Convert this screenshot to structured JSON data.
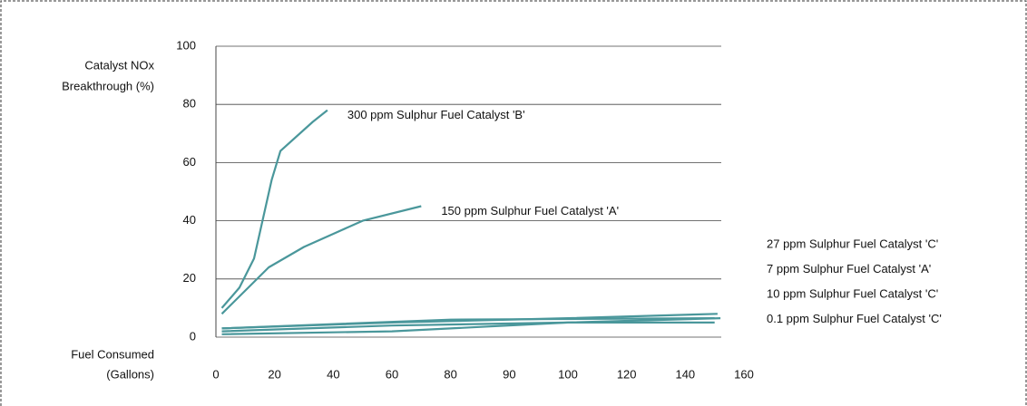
{
  "chart_data": {
    "type": "line",
    "y_label": [
      "Catalyst NOx",
      "Breakthrough (%)"
    ],
    "x_label": [
      "Fuel Consumed",
      "(Gallons)"
    ],
    "ylim": [
      0,
      100
    ],
    "yticks": [
      0,
      20,
      40,
      60,
      80,
      100
    ],
    "xticks": [
      0,
      20,
      40,
      60,
      80,
      90,
      100,
      120,
      140,
      160
    ],
    "grid": true,
    "series": [
      {
        "name": "300 ppm Sulphur Fuel Catalyst 'B'",
        "color": "#4a979b",
        "x": [
          2,
          8,
          13,
          19,
          22,
          33,
          38
        ],
        "values": [
          10,
          17,
          27,
          54,
          64,
          74,
          78
        ]
      },
      {
        "name": "150 ppm Sulphur Fuel Catalyst 'A'",
        "color": "#4a979b",
        "x": [
          2,
          18,
          30,
          50,
          70
        ],
        "values": [
          8,
          24,
          31,
          40,
          45
        ]
      },
      {
        "name": "27 ppm Sulphur Fuel Catalyst 'C'",
        "color": "#4a979b",
        "x": [
          2,
          60,
          100,
          151
        ],
        "values": [
          3,
          5,
          6.5,
          8
        ]
      },
      {
        "name": "7 ppm Sulphur Fuel Catalyst 'A'",
        "color": "#4a979b",
        "x": [
          2,
          80,
          150
        ],
        "values": [
          3,
          6,
          6.5
        ]
      },
      {
        "name": "10 ppm Sulphur Fuel Catalyst 'C'",
        "color": "#4a979b",
        "x": [
          2,
          60,
          100,
          152
        ],
        "values": [
          2,
          4,
          5,
          6.5
        ]
      },
      {
        "name": "0.1 ppm Sulphur Fuel Catalyst 'C'",
        "color": "#4a979b",
        "x": [
          2,
          60,
          100,
          150
        ],
        "values": [
          1,
          2,
          5,
          5
        ]
      }
    ]
  }
}
